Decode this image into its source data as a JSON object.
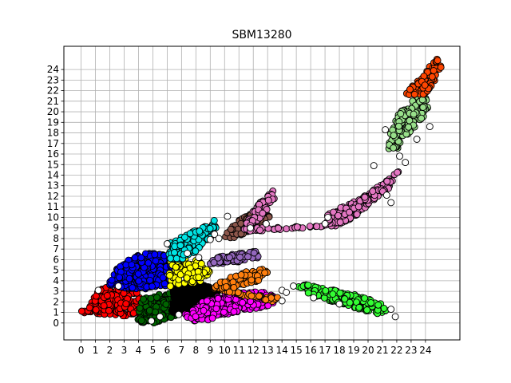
{
  "chart_data": {
    "type": "scatter",
    "title": "SBM13280",
    "xlabel": "",
    "ylabel": "",
    "xlim": [
      -1.2,
      26.4
    ],
    "ylim": [
      -1.6,
      26.2
    ],
    "grid": true,
    "legend": "none",
    "x_ticks": [
      0,
      1,
      2,
      3,
      4,
      5,
      6,
      7,
      8,
      9,
      10,
      11,
      12,
      13,
      14,
      15,
      16,
      17,
      18,
      19,
      20,
      21,
      22,
      23,
      24
    ],
    "y_ticks": [
      0,
      1,
      2,
      3,
      4,
      5,
      6,
      7,
      8,
      9,
      10,
      11,
      12,
      13,
      14,
      15,
      16,
      17,
      18,
      19,
      20,
      21,
      22,
      23,
      24
    ],
    "point_style": {
      "edge_color": "#000000",
      "marker": "circle"
    },
    "clusters": [
      {
        "color": "#ff0000",
        "polygon": [
          [
            -0.2,
            1.2
          ],
          [
            0.5,
            1.4
          ],
          [
            1.2,
            3.2
          ],
          [
            2.4,
            3.6
          ],
          [
            3.8,
            3.2
          ],
          [
            4.2,
            2.0
          ],
          [
            4.2,
            0.8
          ],
          [
            2.5,
            0.6
          ],
          [
            1.2,
            0.8
          ],
          [
            0.0,
            1.0
          ]
        ],
        "count": 220
      },
      {
        "color": "#0000ff",
        "polygon": [
          [
            1.9,
            3.6
          ],
          [
            2.4,
            5.0
          ],
          [
            3.2,
            6.0
          ],
          [
            4.2,
            6.6
          ],
          [
            5.6,
            6.6
          ],
          [
            6.4,
            6.2
          ],
          [
            6.6,
            4.8
          ],
          [
            6.2,
            3.6
          ],
          [
            4.6,
            3.2
          ],
          [
            3.0,
            3.2
          ]
        ],
        "count": 320
      },
      {
        "color": "#006400",
        "polygon": [
          [
            3.9,
            0.2
          ],
          [
            4.2,
            2.4
          ],
          [
            5.4,
            2.8
          ],
          [
            6.6,
            2.8
          ],
          [
            7.0,
            2.0
          ],
          [
            6.8,
            0.8
          ],
          [
            5.2,
            0.0
          ],
          [
            4.4,
            0.0
          ]
        ],
        "count": 180
      },
      {
        "color": "#000000",
        "polygon": [
          [
            6.3,
            1.0
          ],
          [
            6.4,
            3.6
          ],
          [
            7.6,
            3.8
          ],
          [
            8.8,
            3.6
          ],
          [
            9.6,
            3.0
          ],
          [
            9.4,
            1.4
          ],
          [
            8.2,
            1.2
          ],
          [
            7.0,
            1.0
          ]
        ],
        "count": 200
      },
      {
        "color": "#ff00ff",
        "polygon": [
          [
            7.2,
            0.8
          ],
          [
            7.6,
            0.2
          ],
          [
            8.6,
            0.2
          ],
          [
            9.6,
            0.6
          ],
          [
            10.6,
            1.0
          ],
          [
            12.4,
            1.4
          ],
          [
            13.4,
            1.8
          ],
          [
            13.6,
            2.6
          ],
          [
            12.4,
            3.0
          ],
          [
            11.0,
            3.0
          ],
          [
            9.6,
            2.6
          ],
          [
            8.4,
            2.0
          ]
        ],
        "count": 240
      },
      {
        "color": "#ff7f0e",
        "polygon": [
          [
            9.0,
            3.2
          ],
          [
            9.8,
            4.0
          ],
          [
            11.2,
            4.8
          ],
          [
            12.6,
            5.2
          ],
          [
            13.0,
            4.8
          ],
          [
            12.4,
            4.0
          ],
          [
            11.0,
            3.4
          ],
          [
            10.0,
            3.0
          ],
          [
            13.4,
            2.0
          ],
          [
            14.0,
            2.4
          ]
        ],
        "count": 120
      },
      {
        "color": "#ffff00",
        "polygon": [
          [
            6.1,
            3.4
          ],
          [
            6.2,
            6.0
          ],
          [
            7.4,
            6.2
          ],
          [
            8.6,
            5.8
          ],
          [
            9.0,
            4.8
          ],
          [
            8.2,
            3.8
          ],
          [
            7.0,
            3.6
          ]
        ],
        "count": 110
      },
      {
        "color": "#9467bd",
        "polygon": [
          [
            8.9,
            5.6
          ],
          [
            9.4,
            6.2
          ],
          [
            10.8,
            6.6
          ],
          [
            12.2,
            6.8
          ],
          [
            12.4,
            6.2
          ],
          [
            11.0,
            5.8
          ],
          [
            9.8,
            5.6
          ]
        ],
        "count": 90
      },
      {
        "color": "#00e5e5",
        "polygon": [
          [
            6.0,
            6.0
          ],
          [
            6.2,
            7.6
          ],
          [
            7.4,
            8.4
          ],
          [
            8.6,
            9.2
          ],
          [
            9.4,
            9.8
          ],
          [
            9.6,
            9.2
          ],
          [
            9.0,
            8.0
          ],
          [
            8.0,
            6.8
          ],
          [
            7.0,
            6.0
          ]
        ],
        "count": 150
      },
      {
        "color": "#8c564b",
        "polygon": [
          [
            10.0,
            8.0
          ],
          [
            10.4,
            9.2
          ],
          [
            11.6,
            10.2
          ],
          [
            12.6,
            10.6
          ],
          [
            13.2,
            10.2
          ],
          [
            12.8,
            9.2
          ],
          [
            11.6,
            8.6
          ],
          [
            10.6,
            8.0
          ]
        ],
        "count": 90
      },
      {
        "color": "#e377c2",
        "polygon": [
          [
            11.2,
            8.6
          ],
          [
            12.0,
            10.6
          ],
          [
            12.6,
            11.6
          ],
          [
            13.4,
            12.6
          ],
          [
            13.6,
            12.0
          ],
          [
            13.0,
            10.8
          ],
          [
            12.4,
            9.8
          ],
          [
            11.6,
            9.0
          ],
          [
            17.0,
            9.2
          ],
          [
            17.2,
            10.4
          ],
          [
            18.6,
            11.2
          ],
          [
            20.0,
            12.2
          ],
          [
            21.2,
            13.4
          ],
          [
            22.2,
            14.6
          ],
          [
            22.6,
            15.4
          ],
          [
            22.0,
            14.0
          ],
          [
            21.4,
            12.6
          ],
          [
            20.2,
            11.4
          ],
          [
            19.0,
            10.0
          ],
          [
            17.8,
            9.2
          ]
        ],
        "count": 320
      },
      {
        "color": "#33ff33",
        "polygon": [
          [
            15.0,
            3.4
          ],
          [
            15.2,
            3.8
          ],
          [
            16.4,
            3.4
          ],
          [
            18.2,
            3.0
          ],
          [
            19.8,
            2.4
          ],
          [
            21.0,
            1.8
          ],
          [
            21.4,
            1.2
          ],
          [
            20.6,
            0.8
          ],
          [
            19.2,
            1.4
          ],
          [
            17.6,
            2.0
          ],
          [
            16.2,
            2.6
          ]
        ],
        "count": 180
      },
      {
        "color": "#98df8a",
        "polygon": [
          [
            21.4,
            16.0
          ],
          [
            21.6,
            18.2
          ],
          [
            22.0,
            19.6
          ],
          [
            22.6,
            20.6
          ],
          [
            23.4,
            21.4
          ],
          [
            24.0,
            21.6
          ],
          [
            24.2,
            20.2
          ],
          [
            23.6,
            19.0
          ],
          [
            22.8,
            17.8
          ],
          [
            22.0,
            16.4
          ]
        ],
        "count": 140
      },
      {
        "color": "#ff4500",
        "polygon": [
          [
            22.6,
            21.6
          ],
          [
            23.0,
            22.4
          ],
          [
            23.6,
            23.2
          ],
          [
            24.2,
            24.2
          ],
          [
            24.8,
            25.0
          ],
          [
            25.2,
            24.4
          ],
          [
            24.8,
            23.2
          ],
          [
            24.2,
            22.0
          ],
          [
            23.6,
            21.4
          ]
        ],
        "count": 90
      }
    ],
    "white_points": [
      [
        1.2,
        3.1
      ],
      [
        2.6,
        3.5
      ],
      [
        4.9,
        0.2
      ],
      [
        6.0,
        7.5
      ],
      [
        9.0,
        7.9
      ],
      [
        9.3,
        8.4
      ],
      [
        9.6,
        8.0
      ],
      [
        10.2,
        10.1
      ],
      [
        14.0,
        3.1
      ],
      [
        14.3,
        2.9
      ],
      [
        14.8,
        3.5
      ],
      [
        14.0,
        2.1
      ],
      [
        17.0,
        9.4
      ],
      [
        17.2,
        10.0
      ],
      [
        20.4,
        14.9
      ],
      [
        21.3,
        12.1
      ],
      [
        21.6,
        11.4
      ],
      [
        21.2,
        18.3
      ],
      [
        22.2,
        15.8
      ],
      [
        22.6,
        15.2
      ],
      [
        24.3,
        18.6
      ],
      [
        23.4,
        17.4
      ],
      [
        21.9,
        0.6
      ],
      [
        21.6,
        1.3
      ],
      [
        5.5,
        0.6
      ],
      [
        6.8,
        0.8
      ],
      [
        7.4,
        6.6
      ],
      [
        8.2,
        6.2
      ],
      [
        11.8,
        9.0
      ],
      [
        12.9,
        9.4
      ],
      [
        16.2,
        2.4
      ],
      [
        18.0,
        1.8
      ]
    ]
  }
}
